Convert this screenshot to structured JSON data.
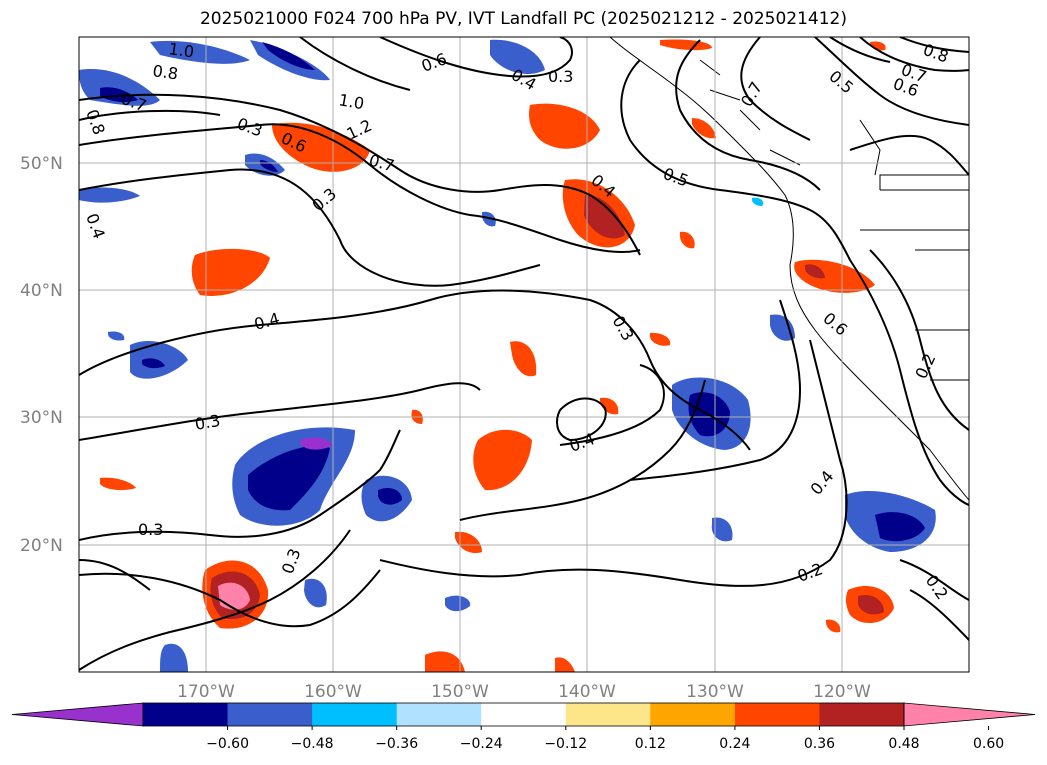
{
  "title": "2025021000 F024 700 hPa PV, IVT Landfall PC (2025021212 - 2025021412)",
  "map": {
    "projection": "lat-lon",
    "lon_range": [
      -180,
      -110
    ],
    "lat_range": [
      10,
      60
    ],
    "lat_ticks": [
      {
        "value": 50,
        "label": "50°N"
      },
      {
        "value": 40,
        "label": "40°N"
      },
      {
        "value": 30,
        "label": "30°N"
      },
      {
        "value": 20,
        "label": "20°N"
      }
    ],
    "lon_ticks": [
      {
        "value": -170,
        "label": "170°W"
      },
      {
        "value": -160,
        "label": "160°W"
      },
      {
        "value": -150,
        "label": "150°W"
      },
      {
        "value": -140,
        "label": "140°W"
      },
      {
        "value": -130,
        "label": "130°W"
      },
      {
        "value": -120,
        "label": "120°W"
      }
    ],
    "grid": true,
    "contour_labels": [
      "1.0",
      "0.8",
      "0.7",
      "0.8",
      "0.3",
      "0.6",
      "1.2",
      "1.0",
      "0.7",
      "0.3",
      "0.4",
      "0.3",
      "0.4",
      "0.5",
      "0.3",
      "0.4",
      "0.3",
      "0.4",
      "0.3",
      "0.3",
      "0.2",
      "0.4",
      "0.6",
      "0.2",
      "0.2",
      "0.5",
      "0.7",
      "0.6",
      "0.8",
      "0.7",
      "0.4",
      "0.6"
    ]
  },
  "colorbar": {
    "ticks": [
      "−0.60",
      "−0.48",
      "−0.36",
      "−0.24",
      "−0.12",
      "0.12",
      "0.24",
      "0.36",
      "0.48",
      "0.60"
    ],
    "colors": [
      "#9932cc",
      "#00008b",
      "#3a5fcd",
      "#00bfff",
      "#b0e2ff",
      "#ffffff",
      "#fde68a",
      "#ffa500",
      "#ff4500",
      "#b22222",
      "#ff82ab"
    ]
  }
}
